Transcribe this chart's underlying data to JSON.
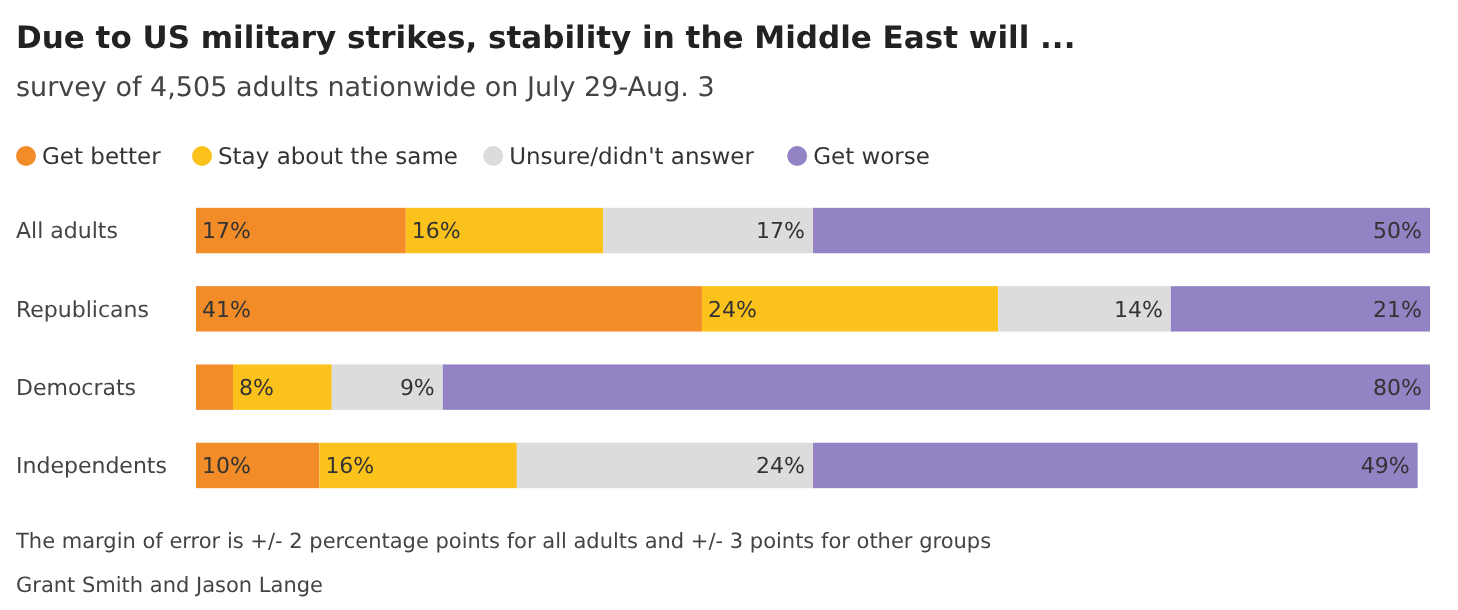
{
  "chart_data": {
    "type": "bar",
    "orientation": "horizontal",
    "stacked": true,
    "title": "Due to US military strikes, stability in the Middle East will ...",
    "subtitle": "survey of 4,505 adults nationwide on July 29-Aug. 3",
    "categories": [
      "All adults",
      "Republicans",
      "Democrats",
      "Independents"
    ],
    "series": [
      {
        "name": "Get better",
        "color": "#f28c28",
        "values": [
          17,
          41,
          3,
          10
        ],
        "value_labels": [
          "17%",
          "41%",
          null,
          "10%"
        ]
      },
      {
        "name": "Stay about the same",
        "color": "#fbc21c",
        "values": [
          16,
          24,
          8,
          16
        ],
        "value_labels": [
          "16%",
          "24%",
          "8%",
          "16%"
        ]
      },
      {
        "name": "Unsure/didn't answer",
        "color": "#dcdcdc",
        "values": [
          17,
          14,
          9,
          24
        ],
        "value_labels": [
          "17%",
          "14%",
          "9%",
          "24%"
        ]
      },
      {
        "name": "Get worse",
        "color": "#9383c4",
        "values": [
          50,
          21,
          80,
          49
        ],
        "value_labels": [
          "50%",
          "21%",
          "80%",
          "49%"
        ]
      }
    ],
    "xlim": [
      0,
      100
    ],
    "legend": "top left",
    "grid": false,
    "annotations": [
      "The margin of error is +/- 2 percentage points for all adults and +/- 3 points for other groups",
      "Grant Smith and Jason Lange"
    ]
  }
}
